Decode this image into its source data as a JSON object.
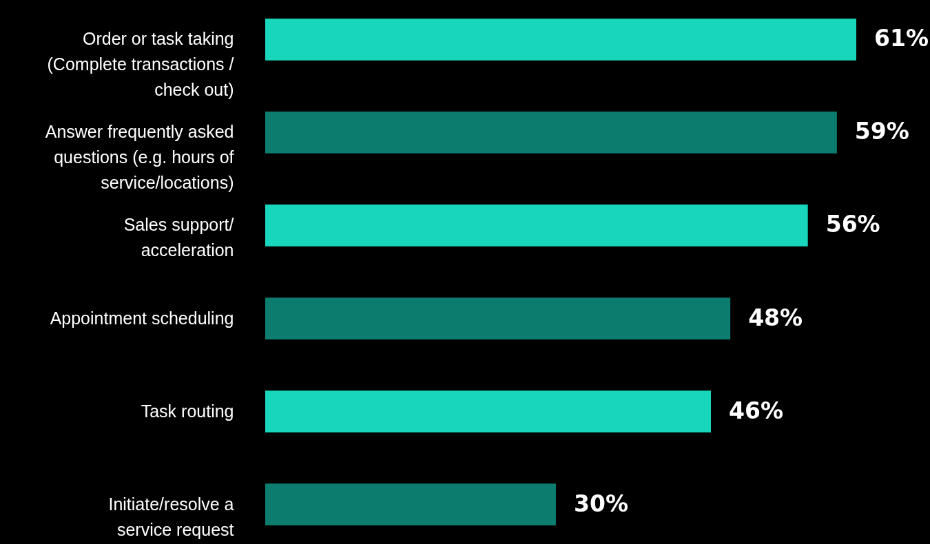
{
  "chart_data": {
    "type": "bar",
    "orientation": "horizontal",
    "categories": [
      "Order or task taking (Complete transactions / check out)",
      "Answer frequently asked questions (e.g. hours of service/locations)",
      "Sales support/ acceleration",
      "Appointment scheduling",
      "Task routing",
      "Initiate/resolve a service request"
    ],
    "values": [
      61,
      59,
      56,
      48,
      46,
      30
    ],
    "colors": [
      "#17d6bb",
      "#0b7c6e",
      "#17d6bb",
      "#0b7c6e",
      "#17d6bb",
      "#0b7c6e"
    ],
    "value_labels": [
      "61%",
      "59%",
      "56%",
      "48%",
      "46%",
      "30%"
    ]
  }
}
